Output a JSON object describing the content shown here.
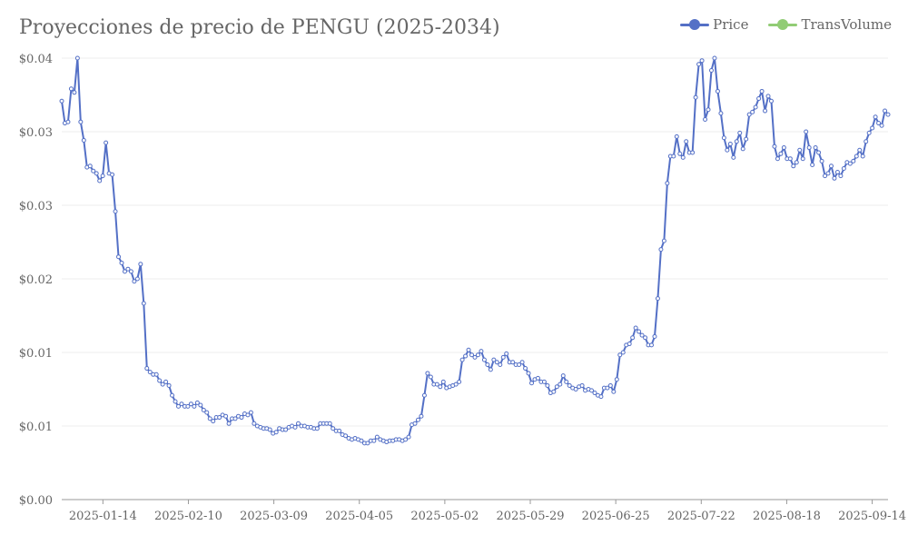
{
  "colors": {
    "price": "#5470c6",
    "transvolume": "#91cc75",
    "grid": "#eeeeee",
    "axis": "#999999",
    "text": "#666666"
  },
  "chart_data": {
    "type": "line",
    "title": "Proyecciones de precio de PENGU (2025-2034)",
    "legend_position": "top-right",
    "legend": [
      "Price",
      "TransVolume"
    ],
    "grid": true,
    "y_tick_labels": [
      "$0.00",
      "$0.01",
      "$0.01",
      "$0.02",
      "$0.03",
      "$0.03",
      "$0.04"
    ],
    "ylim": [
      0,
      0.036
    ],
    "x_tick_labels": [
      "2025-01-14",
      "2025-02-10",
      "2025-03-09",
      "2025-04-05",
      "2025-05-02",
      "2025-05-29",
      "2025-06-25",
      "2025-07-22",
      "2025-08-18",
      "2025-09-14"
    ],
    "series": [
      {
        "name": "Price",
        "x_start": "2025-01-01",
        "x_end": "2025-09-19",
        "values": [
          0.0325,
          0.0307,
          0.0308,
          0.0335,
          0.0332,
          0.036,
          0.0308,
          0.0293,
          0.0271,
          0.0272,
          0.0268,
          0.0266,
          0.026,
          0.0264,
          0.0291,
          0.0266,
          0.0265,
          0.0235,
          0.0198,
          0.0193,
          0.0186,
          0.0188,
          0.0186,
          0.0178,
          0.018,
          0.0192,
          0.016,
          0.0107,
          0.0104,
          0.0102,
          0.0102,
          0.0097,
          0.0094,
          0.0096,
          0.0093,
          0.0085,
          0.008,
          0.0076,
          0.0078,
          0.0076,
          0.0076,
          0.0078,
          0.0076,
          0.0079,
          0.0077,
          0.0073,
          0.0071,
          0.0066,
          0.0064,
          0.0067,
          0.0067,
          0.0069,
          0.0068,
          0.0062,
          0.0066,
          0.0066,
          0.0068,
          0.0067,
          0.007,
          0.0069,
          0.0071,
          0.0062,
          0.006,
          0.0059,
          0.0058,
          0.0058,
          0.0057,
          0.0054,
          0.0055,
          0.0058,
          0.0057,
          0.0057,
          0.0059,
          0.006,
          0.0059,
          0.0062,
          0.006,
          0.006,
          0.0059,
          0.0059,
          0.0058,
          0.0058,
          0.0062,
          0.0062,
          0.0062,
          0.0062,
          0.0058,
          0.0056,
          0.0056,
          0.0053,
          0.0052,
          0.005,
          0.0049,
          0.005,
          0.0049,
          0.0048,
          0.0046,
          0.0046,
          0.0048,
          0.0048,
          0.0051,
          0.0049,
          0.0048,
          0.0047,
          0.0048,
          0.0048,
          0.0049,
          0.0049,
          0.0048,
          0.0049,
          0.0051,
          0.0061,
          0.0062,
          0.0065,
          0.0068,
          0.0085,
          0.0103,
          0.01,
          0.0094,
          0.0094,
          0.0092,
          0.0096,
          0.0091,
          0.0092,
          0.0093,
          0.0094,
          0.0096,
          0.0114,
          0.0117,
          0.0122,
          0.0118,
          0.0116,
          0.0118,
          0.0121,
          0.0114,
          0.011,
          0.0106,
          0.0114,
          0.0112,
          0.011,
          0.0116,
          0.0119,
          0.0112,
          0.0112,
          0.011,
          0.011,
          0.0112,
          0.0107,
          0.0103,
          0.0095,
          0.0098,
          0.0099,
          0.0096,
          0.0096,
          0.0093,
          0.0087,
          0.0088,
          0.0092,
          0.0094,
          0.0101,
          0.0096,
          0.0093,
          0.0091,
          0.009,
          0.0092,
          0.0093,
          0.0089,
          0.009,
          0.0089,
          0.0087,
          0.0085,
          0.0084,
          0.0091,
          0.0091,
          0.0093,
          0.0088,
          0.0098,
          0.0118,
          0.012,
          0.0126,
          0.0127,
          0.0132,
          0.014,
          0.0137,
          0.0134,
          0.0132,
          0.0126,
          0.0126,
          0.0133,
          0.0164,
          0.0204,
          0.0211,
          0.0258,
          0.028,
          0.028,
          0.0296,
          0.0282,
          0.0279,
          0.0292,
          0.0283,
          0.0283,
          0.0328,
          0.0355,
          0.0358,
          0.031,
          0.0318,
          0.035,
          0.036,
          0.0333,
          0.0315,
          0.0295,
          0.0285,
          0.029,
          0.0279,
          0.0292,
          0.0299,
          0.0286,
          0.0294,
          0.0314,
          0.0316,
          0.032,
          0.0327,
          0.0333,
          0.0317,
          0.0329,
          0.0325,
          0.0288,
          0.0278,
          0.0282,
          0.0287,
          0.0278,
          0.0278,
          0.0272,
          0.0275,
          0.0285,
          0.0278,
          0.03,
          0.0287,
          0.0273,
          0.0287,
          0.0283,
          0.0276,
          0.0264,
          0.0266,
          0.0272,
          0.0262,
          0.0267,
          0.0264,
          0.027,
          0.0275,
          0.0274,
          0.0276,
          0.028,
          0.0285,
          0.028,
          0.0292,
          0.0299,
          0.0303,
          0.0312,
          0.0307,
          0.0305,
          0.0317,
          0.0314
        ]
      },
      {
        "name": "TransVolume",
        "values": []
      }
    ]
  }
}
